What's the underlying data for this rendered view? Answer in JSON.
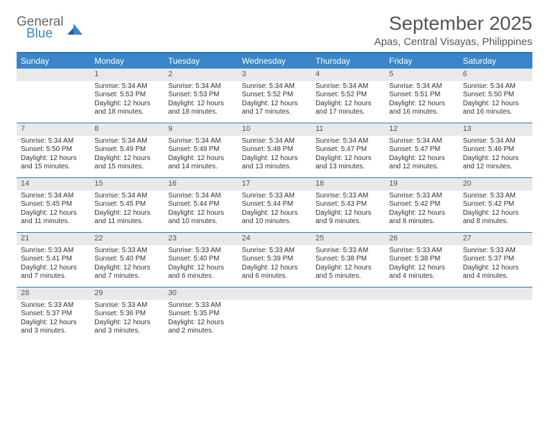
{
  "logo": {
    "general": "General",
    "blue": "Blue"
  },
  "title": "September 2025",
  "subtitle": "Apas, Central Visayas, Philippines",
  "colors": {
    "accent": "#3a86c8",
    "headerBorder": "#2a76b8",
    "dayNumBg": "#e9e9e9",
    "text": "#333333",
    "titleText": "#555555"
  },
  "dayNames": [
    "Sunday",
    "Monday",
    "Tuesday",
    "Wednesday",
    "Thursday",
    "Friday",
    "Saturday"
  ],
  "weeks": [
    [
      null,
      {
        "n": "1",
        "sr": "Sunrise: 5:34 AM",
        "ss": "Sunset: 5:53 PM",
        "dl": "Daylight: 12 hours and 18 minutes."
      },
      {
        "n": "2",
        "sr": "Sunrise: 5:34 AM",
        "ss": "Sunset: 5:53 PM",
        "dl": "Daylight: 12 hours and 18 minutes."
      },
      {
        "n": "3",
        "sr": "Sunrise: 5:34 AM",
        "ss": "Sunset: 5:52 PM",
        "dl": "Daylight: 12 hours and 17 minutes."
      },
      {
        "n": "4",
        "sr": "Sunrise: 5:34 AM",
        "ss": "Sunset: 5:52 PM",
        "dl": "Daylight: 12 hours and 17 minutes."
      },
      {
        "n": "5",
        "sr": "Sunrise: 5:34 AM",
        "ss": "Sunset: 5:51 PM",
        "dl": "Daylight: 12 hours and 16 minutes."
      },
      {
        "n": "6",
        "sr": "Sunrise: 5:34 AM",
        "ss": "Sunset: 5:50 PM",
        "dl": "Daylight: 12 hours and 16 minutes."
      }
    ],
    [
      {
        "n": "7",
        "sr": "Sunrise: 5:34 AM",
        "ss": "Sunset: 5:50 PM",
        "dl": "Daylight: 12 hours and 15 minutes."
      },
      {
        "n": "8",
        "sr": "Sunrise: 5:34 AM",
        "ss": "Sunset: 5:49 PM",
        "dl": "Daylight: 12 hours and 15 minutes."
      },
      {
        "n": "9",
        "sr": "Sunrise: 5:34 AM",
        "ss": "Sunset: 5:49 PM",
        "dl": "Daylight: 12 hours and 14 minutes."
      },
      {
        "n": "10",
        "sr": "Sunrise: 5:34 AM",
        "ss": "Sunset: 5:48 PM",
        "dl": "Daylight: 12 hours and 13 minutes."
      },
      {
        "n": "11",
        "sr": "Sunrise: 5:34 AM",
        "ss": "Sunset: 5:47 PM",
        "dl": "Daylight: 12 hours and 13 minutes."
      },
      {
        "n": "12",
        "sr": "Sunrise: 5:34 AM",
        "ss": "Sunset: 5:47 PM",
        "dl": "Daylight: 12 hours and 12 minutes."
      },
      {
        "n": "13",
        "sr": "Sunrise: 5:34 AM",
        "ss": "Sunset: 5:46 PM",
        "dl": "Daylight: 12 hours and 12 minutes."
      }
    ],
    [
      {
        "n": "14",
        "sr": "Sunrise: 5:34 AM",
        "ss": "Sunset: 5:45 PM",
        "dl": "Daylight: 12 hours and 11 minutes."
      },
      {
        "n": "15",
        "sr": "Sunrise: 5:34 AM",
        "ss": "Sunset: 5:45 PM",
        "dl": "Daylight: 12 hours and 11 minutes."
      },
      {
        "n": "16",
        "sr": "Sunrise: 5:34 AM",
        "ss": "Sunset: 5:44 PM",
        "dl": "Daylight: 12 hours and 10 minutes."
      },
      {
        "n": "17",
        "sr": "Sunrise: 5:33 AM",
        "ss": "Sunset: 5:44 PM",
        "dl": "Daylight: 12 hours and 10 minutes."
      },
      {
        "n": "18",
        "sr": "Sunrise: 5:33 AM",
        "ss": "Sunset: 5:43 PM",
        "dl": "Daylight: 12 hours and 9 minutes."
      },
      {
        "n": "19",
        "sr": "Sunrise: 5:33 AM",
        "ss": "Sunset: 5:42 PM",
        "dl": "Daylight: 12 hours and 8 minutes."
      },
      {
        "n": "20",
        "sr": "Sunrise: 5:33 AM",
        "ss": "Sunset: 5:42 PM",
        "dl": "Daylight: 12 hours and 8 minutes."
      }
    ],
    [
      {
        "n": "21",
        "sr": "Sunrise: 5:33 AM",
        "ss": "Sunset: 5:41 PM",
        "dl": "Daylight: 12 hours and 7 minutes."
      },
      {
        "n": "22",
        "sr": "Sunrise: 5:33 AM",
        "ss": "Sunset: 5:40 PM",
        "dl": "Daylight: 12 hours and 7 minutes."
      },
      {
        "n": "23",
        "sr": "Sunrise: 5:33 AM",
        "ss": "Sunset: 5:40 PM",
        "dl": "Daylight: 12 hours and 6 minutes."
      },
      {
        "n": "24",
        "sr": "Sunrise: 5:33 AM",
        "ss": "Sunset: 5:39 PM",
        "dl": "Daylight: 12 hours and 6 minutes."
      },
      {
        "n": "25",
        "sr": "Sunrise: 5:33 AM",
        "ss": "Sunset: 5:38 PM",
        "dl": "Daylight: 12 hours and 5 minutes."
      },
      {
        "n": "26",
        "sr": "Sunrise: 5:33 AM",
        "ss": "Sunset: 5:38 PM",
        "dl": "Daylight: 12 hours and 4 minutes."
      },
      {
        "n": "27",
        "sr": "Sunrise: 5:33 AM",
        "ss": "Sunset: 5:37 PM",
        "dl": "Daylight: 12 hours and 4 minutes."
      }
    ],
    [
      {
        "n": "28",
        "sr": "Sunrise: 5:33 AM",
        "ss": "Sunset: 5:37 PM",
        "dl": "Daylight: 12 hours and 3 minutes."
      },
      {
        "n": "29",
        "sr": "Sunrise: 5:33 AM",
        "ss": "Sunset: 5:36 PM",
        "dl": "Daylight: 12 hours and 3 minutes."
      },
      {
        "n": "30",
        "sr": "Sunrise: 5:33 AM",
        "ss": "Sunset: 5:35 PM",
        "dl": "Daylight: 12 hours and 2 minutes."
      },
      null,
      null,
      null,
      null
    ]
  ]
}
